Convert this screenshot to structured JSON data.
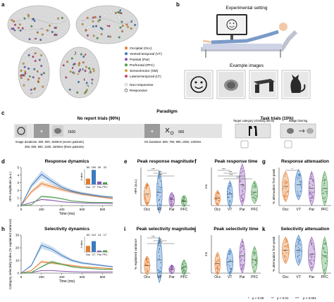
{
  "panel_a": {
    "letter": "a",
    "legend": [
      {
        "label": "Occipital (Occ)",
        "color": "#e37b2c"
      },
      {
        "label": "Ventral-temporal (VT)",
        "color": "#3b7bbf"
      },
      {
        "label": "Parietal (Par)",
        "color": "#8a57b0"
      },
      {
        "label": "Prefrontal (PFC)",
        "color": "#4c9e50"
      },
      {
        "label": "Sensorimotor (SM)",
        "color": "#d1a53a"
      },
      {
        "label": "Lateral-temporal (LT)",
        "color": "#c7417b"
      }
    ],
    "non_responsive": "Non-responsive",
    "responsive": "Responsive"
  },
  "panel_b": {
    "letter": "b",
    "title": "Experimental setting",
    "example_title": "Example images"
  },
  "panel_c": {
    "letter": "c",
    "title": "Paradigm",
    "no_report": "No report trials (90%)",
    "task": "Task trials (10%)",
    "t1500": "1500",
    "t900": "900",
    "image_durations_1": "Image durations: 300, 900, 1500ms (seven patients)",
    "image_durations_2": "300, 600, 900, 1200, 1500ms (three patients)",
    "isi": "ISI durations: 600, 750, 900, 1050, 1200ms",
    "target": "Target category (clothing items)",
    "blurring": "Image blurring"
  },
  "panel_d": {
    "letter": "d",
    "title": "Response dynamics",
    "ylabel": "HFA amplitude (a.u.)",
    "xlabel": "Time (ms)",
    "inset_ylabel": "# sites",
    "chart_data": {
      "type": "line",
      "x": [
        0,
        100,
        200,
        300,
        400,
        500,
        600,
        700,
        800,
        900
      ],
      "ylim": [
        0,
        5
      ],
      "xlim": [
        0,
        900
      ],
      "series": [
        {
          "name": "Occ",
          "color": "#e37b2c",
          "values": [
            0,
            1.8,
            2.9,
            2.5,
            2.1,
            1.8,
            1.5,
            1.3,
            1.1,
            0.9
          ]
        },
        {
          "name": "VT",
          "color": "#3b7bbf",
          "values": [
            0,
            2.6,
            4.1,
            3.2,
            2.4,
            1.9,
            1.6,
            1.4,
            1.2,
            1.1
          ]
        },
        {
          "name": "Par",
          "color": "#8a57b0",
          "values": [
            0,
            0.4,
            0.8,
            0.7,
            0.5,
            0.4,
            0.35,
            0.3,
            0.3,
            0.25
          ]
        },
        {
          "name": "PFC",
          "color": "#4c9e50",
          "values": [
            0,
            0.1,
            1.2,
            1.1,
            0.9,
            0.6,
            0.5,
            0.4,
            0.4,
            0.4
          ]
        }
      ],
      "inset": {
        "categories": [
          "Occ",
          "VT",
          "Par",
          "PFC"
        ],
        "values": [
          60,
          150,
          30,
          22
        ],
        "labels": [
          "60",
          "150",
          "30",
          "22"
        ]
      }
    }
  },
  "panel_e": {
    "letter": "e",
    "title": "Peak response magnitude",
    "ylabel": "HFA (a.u.)",
    "categories": [
      "Occ",
      "VT",
      "Par",
      "PFC"
    ],
    "sig": [
      "***",
      "***",
      "***"
    ]
  },
  "panel_f": {
    "letter": "f",
    "title": "Peak response time",
    "ylabel": "ms",
    "categories": [
      "Occ",
      "VT",
      "Par",
      "PFC"
    ],
    "sig": [
      "***",
      "***",
      "***",
      "***"
    ]
  },
  "panel_g": {
    "letter": "g",
    "title": "Response attenuation",
    "ylabel": "% attenuation from peak",
    "categories": [
      "Occ",
      "VT",
      "Par",
      "PFC"
    ],
    "sig": [
      "*"
    ]
  },
  "panel_h": {
    "letter": "h",
    "title": "Selectivity dynamics",
    "ylabel": "Category selectivity index (% explained variance)",
    "xlabel": "Time (ms)",
    "inset_ylabel": "# sites",
    "chart_data": {
      "type": "line",
      "x": [
        0,
        100,
        200,
        300,
        400,
        500,
        600,
        700,
        800,
        900
      ],
      "ylim": [
        0,
        30
      ],
      "xlim": [
        0,
        900
      ],
      "series": [
        {
          "name": "Occ",
          "color": "#e37b2c",
          "values": [
            0,
            2,
            9,
            8,
            7,
            6,
            5,
            4.5,
            4,
            3.5
          ]
        },
        {
          "name": "VT",
          "color": "#3b7bbf",
          "values": [
            0,
            6,
            22,
            19,
            14,
            10,
            8,
            7,
            6,
            5
          ]
        },
        {
          "name": "Par",
          "color": "#8a57b0",
          "values": [
            0,
            0.5,
            2,
            2,
            1.5,
            1.2,
            1,
            1,
            1,
            1
          ]
        },
        {
          "name": "PFC",
          "color": "#4c9e50",
          "values": [
            0,
            0.5,
            5,
            9,
            7,
            5,
            4,
            3.5,
            3,
            3
          ]
        }
      ],
      "inset": {
        "categories": [
          "Occ",
          "VT",
          "Par",
          "PFC"
        ],
        "values": [
          63,
          112,
          14,
          17
        ],
        "labels": [
          "63",
          "112",
          "14",
          "17"
        ]
      }
    }
  },
  "panel_i": {
    "letter": "i",
    "title": "Peak selectivity magnitude",
    "ylabel": "% explained variance",
    "categories": [
      "Occ",
      "VT",
      "Par",
      "PFC"
    ],
    "sig": [
      "***",
      "***",
      "***"
    ]
  },
  "panel_j": {
    "letter": "j",
    "title": "Peak selectivity time",
    "ylabel": "ms",
    "categories": [
      "Occ",
      "VT",
      "Par",
      "PFC"
    ]
  },
  "panel_k": {
    "letter": "k",
    "title": "Selectivity attenuation",
    "ylabel": "% attenuation from peak",
    "categories": [
      "Occ",
      "VT",
      "Par",
      "PFC"
    ]
  },
  "footnote": {
    "p05": "p < 0.05",
    "p01": "p < 0.01",
    "p001": "p < 0.001",
    "s1": "*",
    "s2": "**",
    "s3": "***"
  },
  "axis_ticks": {
    "time": [
      "0",
      "200",
      "400",
      "600",
      "800"
    ],
    "hfa": [
      "0",
      "1",
      "2",
      "3",
      "4",
      "5"
    ],
    "csi": [
      "0",
      "10",
      "20",
      "30"
    ]
  }
}
